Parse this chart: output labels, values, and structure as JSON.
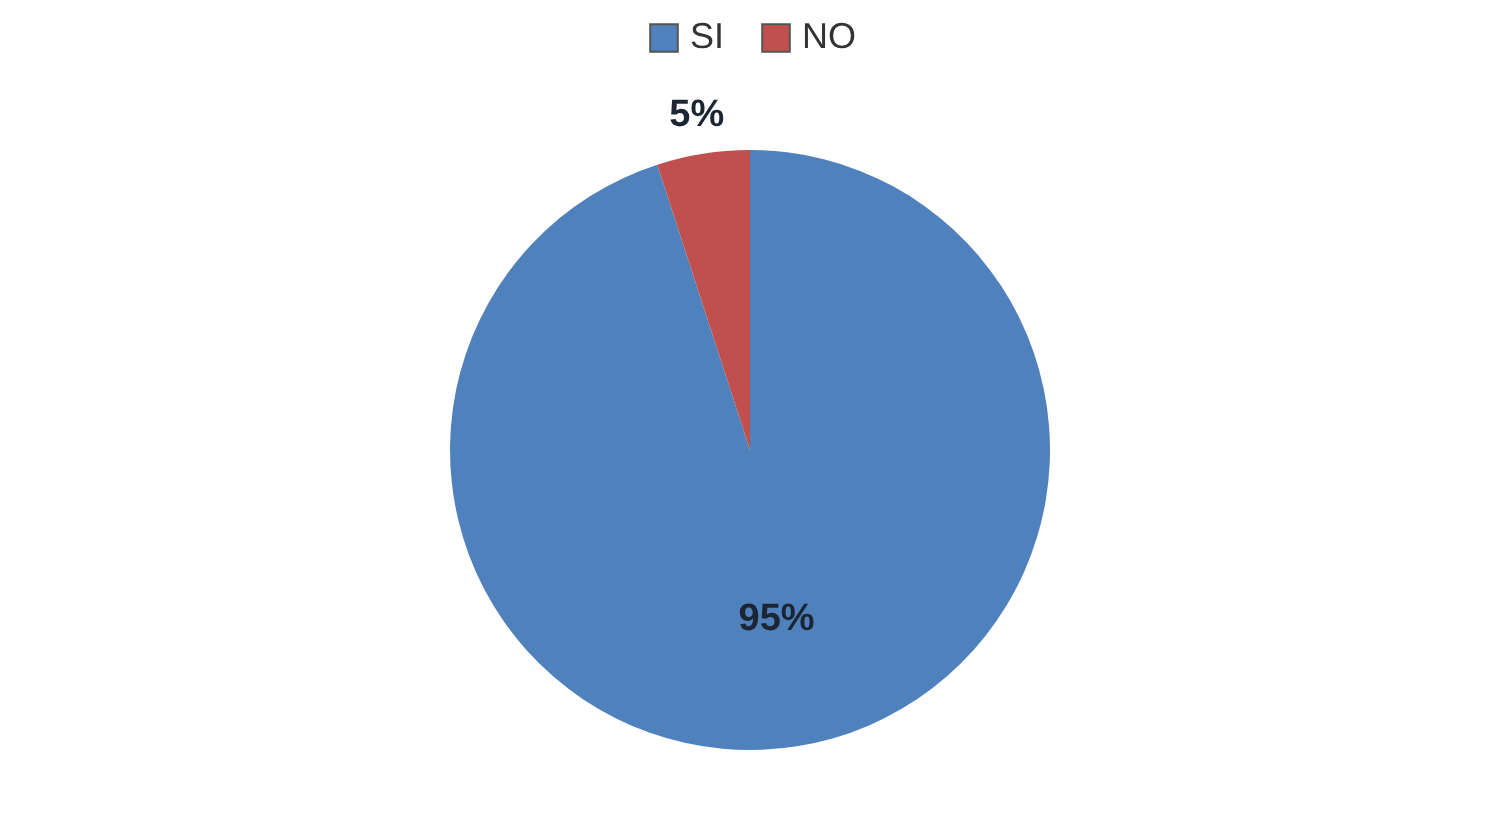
{
  "chart_data": {
    "type": "pie",
    "categories": [
      "SI",
      "NO"
    ],
    "values": [
      95,
      5
    ],
    "colors": [
      "#4f81bd",
      "#c0504d"
    ],
    "value_labels": [
      "95%",
      "5%"
    ],
    "legend": "top"
  }
}
